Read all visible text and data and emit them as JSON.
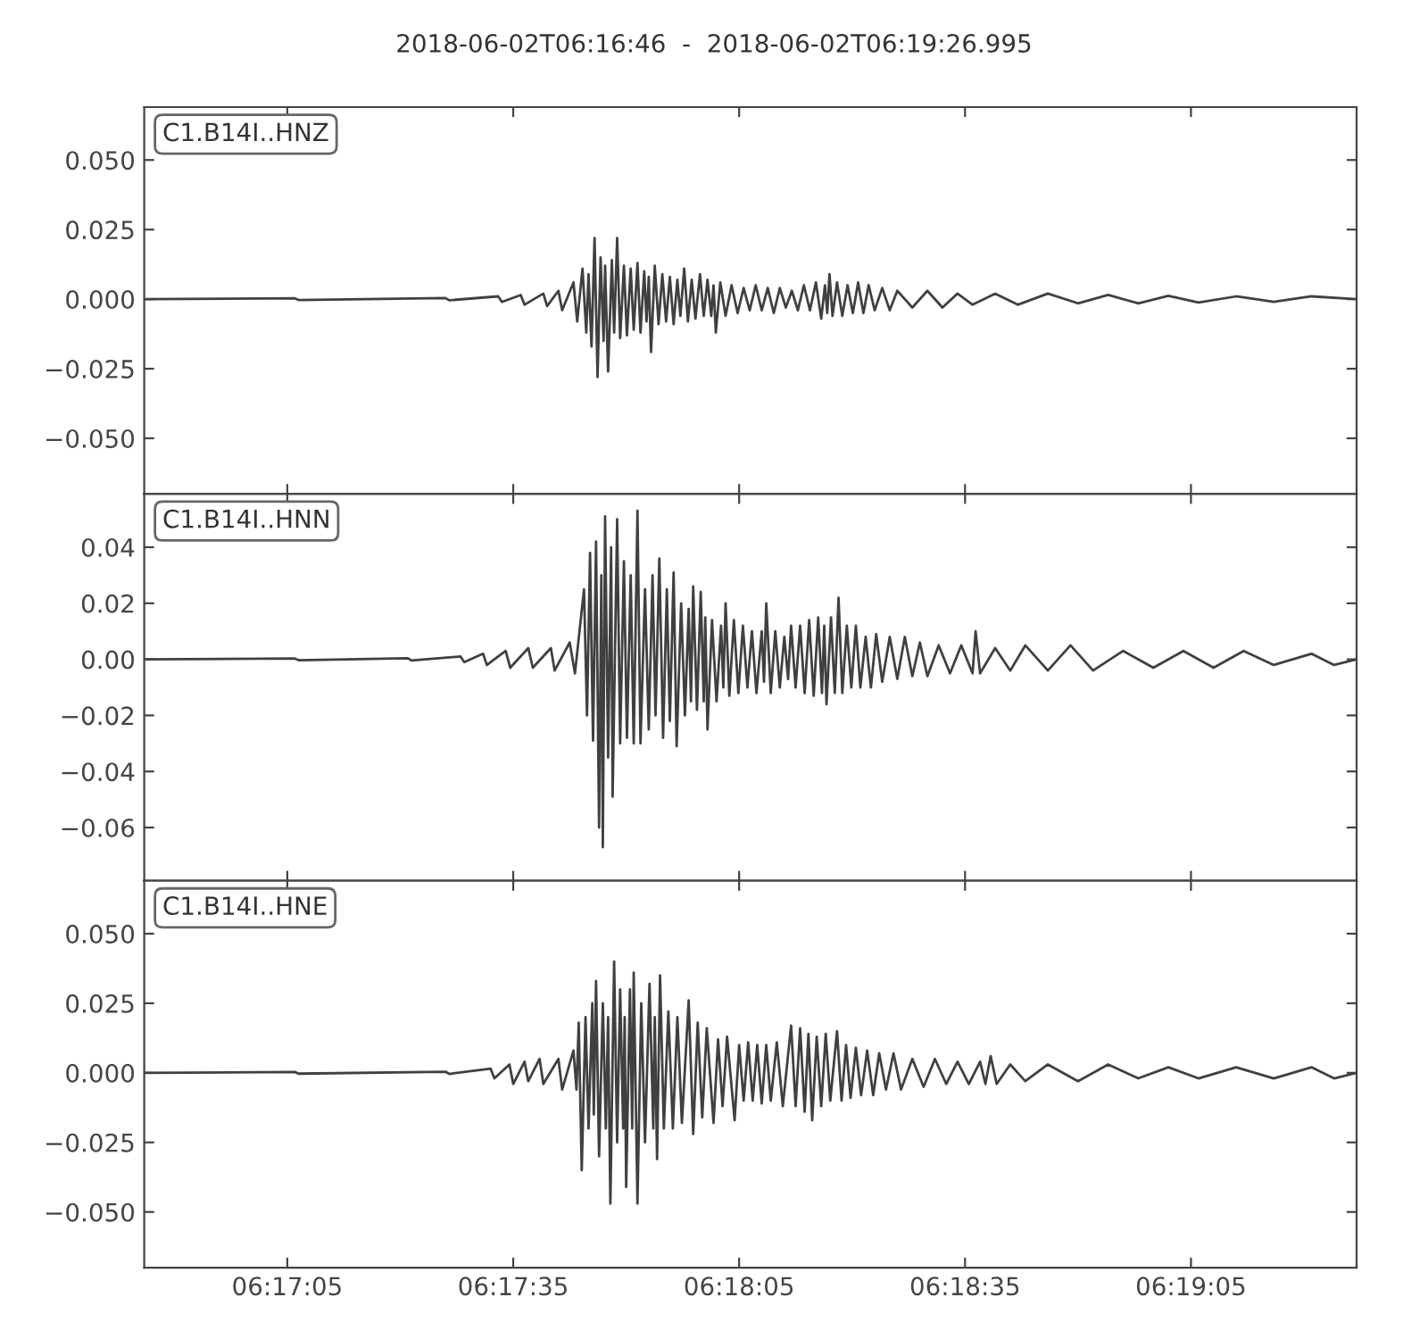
{
  "chart_data": [
    {
      "type": "line",
      "title": "2018-06-02T06:16:46  -  2018-06-02T06:19:26.995",
      "annotations": [
        "C1.B14I..HNZ"
      ],
      "tick_labels": "y",
      "color": "#404040",
      "xlim": [
        "2018-06-02T06:16:46",
        "2018-06-02T06:19:26.995"
      ],
      "xticks": [
        {
          "value": "2018-06-02T06:17:05",
          "label": null
        },
        {
          "value": "2018-06-02T06:17:35",
          "label": null
        },
        {
          "value": "2018-06-02T06:18:05",
          "label": null
        },
        {
          "value": "2018-06-02T06:18:35",
          "label": null
        },
        {
          "value": "2018-06-02T06:19:05",
          "label": null
        }
      ],
      "ylim": [
        -0.07,
        0.069
      ],
      "yticks": [
        {
          "value": -0.05,
          "label": "−0.050"
        },
        {
          "value": -0.025,
          "label": "−0.025"
        },
        {
          "value": 0,
          "label": "0.000"
        },
        {
          "value": 0.025,
          "label": "0.025"
        },
        {
          "value": 0.05,
          "label": "0.050"
        }
      ],
      "x": [
        "2018-06-02T06:16:46",
        "2018-06-02T06:17:06",
        "2018-06-02T06:17:06.5",
        "2018-06-02T06:17:26",
        "2018-06-02T06:17:26.5",
        "2018-06-02T06:17:33",
        "2018-06-02T06:17:33.5",
        "2018-06-02T06:17:36",
        "2018-06-02T06:17:36.5",
        "2018-06-02T06:17:39",
        "2018-06-02T06:17:39.5",
        "2018-06-02T06:17:41",
        "2018-06-02T06:17:41.5",
        "2018-06-02T06:17:43",
        "2018-06-02T06:17:43.5",
        "2018-06-02T06:17:44.2",
        "2018-06-02T06:17:44.7",
        "2018-06-02T06:17:45",
        "2018-06-02T06:17:45.4",
        "2018-06-02T06:17:45.8",
        "2018-06-02T06:17:46.2",
        "2018-06-02T06:17:46.6",
        "2018-06-02T06:17:47",
        "2018-06-02T06:17:47.2",
        "2018-06-02T06:17:47.6",
        "2018-06-02T06:17:48.1",
        "2018-06-02T06:17:48.4",
        "2018-06-02T06:17:48.8",
        "2018-06-02T06:17:49.2",
        "2018-06-02T06:17:49.7",
        "2018-06-02T06:17:50.1",
        "2018-06-02T06:17:50.6",
        "2018-06-02T06:17:51",
        "2018-06-02T06:17:51.5",
        "2018-06-02T06:17:51.9",
        "2018-06-02T06:17:52.4",
        "2018-06-02T06:17:52.7",
        "2018-06-02T06:17:53",
        "2018-06-02T06:17:53.3",
        "2018-06-02T06:17:53.8",
        "2018-06-02T06:17:54.3",
        "2018-06-02T06:17:54.8",
        "2018-06-02T06:17:55.3",
        "2018-06-02T06:17:55.8",
        "2018-06-02T06:17:56.3",
        "2018-06-02T06:17:56.8",
        "2018-06-02T06:17:57.2",
        "2018-06-02T06:17:57.7",
        "2018-06-02T06:17:58.2",
        "2018-06-02T06:17:58.7",
        "2018-06-02T06:17:59.2",
        "2018-06-02T06:17:59.8",
        "2018-06-02T06:18:00.3",
        "2018-06-02T06:18:00.8",
        "2018-06-02T06:18:01.3",
        "2018-06-02T06:18:01.6",
        "2018-06-02T06:18:01.9",
        "2018-06-02T06:18:02.5",
        "2018-06-02T06:18:03.2",
        "2018-06-02T06:18:04",
        "2018-06-02T06:18:04.8",
        "2018-06-02T06:18:05.6",
        "2018-06-02T06:18:06.4",
        "2018-06-02T06:18:07.2",
        "2018-06-02T06:18:08",
        "2018-06-02T06:18:08.8",
        "2018-06-02T06:18:09.6",
        "2018-06-02T06:18:10.4",
        "2018-06-02T06:18:11.2",
        "2018-06-02T06:18:12",
        "2018-06-02T06:18:12.8",
        "2018-06-02T06:18:13.6",
        "2018-06-02T06:18:14.4",
        "2018-06-02T06:18:15.2",
        "2018-06-02T06:18:15.9",
        "2018-06-02T06:18:16.4",
        "2018-06-02T06:18:16.7",
        "2018-06-02T06:18:17",
        "2018-06-02T06:18:17.4",
        "2018-06-02T06:18:18",
        "2018-06-02T06:18:18.7",
        "2018-06-02T06:18:19.4",
        "2018-06-02T06:18:20.1",
        "2018-06-02T06:18:20.8",
        "2018-06-02T06:18:21.5",
        "2018-06-02T06:18:22.2",
        "2018-06-02T06:18:23",
        "2018-06-02T06:18:24",
        "2018-06-02T06:18:25",
        "2018-06-02T06:18:26",
        "2018-06-02T06:18:28",
        "2018-06-02T06:18:30",
        "2018-06-02T06:18:32",
        "2018-06-02T06:18:34",
        "2018-06-02T06:18:36",
        "2018-06-02T06:18:39",
        "2018-06-02T06:18:42",
        "2018-06-02T06:18:46",
        "2018-06-02T06:18:50",
        "2018-06-02T06:18:54",
        "2018-06-02T06:18:58",
        "2018-06-02T06:19:02",
        "2018-06-02T06:19:06",
        "2018-06-02T06:19:11",
        "2018-06-02T06:19:16",
        "2018-06-02T06:19:21",
        "2018-06-02T06:19:26.995"
      ],
      "values": [
        0,
        0.0003,
        -0.0003,
        0.0004,
        -0.0004,
        0.001,
        -0.001,
        0.0015,
        -0.002,
        0.002,
        -0.0025,
        0.003,
        -0.004,
        0.006,
        -0.008,
        0.011,
        -0.012,
        0.009,
        -0.017,
        0.022,
        -0.028,
        0.015,
        -0.015,
        0.012,
        -0.026,
        0.014,
        -0.012,
        0.022,
        -0.014,
        0.012,
        -0.013,
        0.011,
        -0.011,
        0.013,
        -0.012,
        0.01,
        -0.008,
        0.008,
        -0.019,
        0.012,
        -0.009,
        0.009,
        -0.008,
        0.008,
        -0.009,
        0.007,
        -0.006,
        0.011,
        -0.008,
        0.007,
        -0.007,
        0.009,
        -0.006,
        0.007,
        -0.006,
        0.005,
        -0.012,
        0.006,
        -0.006,
        0.005,
        -0.005,
        0.004,
        -0.004,
        0.005,
        -0.004,
        0.004,
        -0.005,
        0.004,
        -0.003,
        0.003,
        -0.004,
        0.005,
        -0.004,
        0.006,
        -0.007,
        0.005,
        -0.005,
        0.009,
        -0.006,
        0.006,
        -0.006,
        0.005,
        -0.005,
        0.006,
        -0.005,
        0.005,
        -0.004,
        0.004,
        -0.004,
        0.003,
        -0.003,
        0.003,
        -0.003,
        0.002,
        -0.002,
        0.002,
        -0.002,
        0.002,
        -0.0015,
        0.0015,
        -0.0015,
        0.0012,
        -0.0012,
        0.001,
        -0.001,
        0.001,
        0
      ]
    },
    {
      "type": "line",
      "annotations": [
        "C1.B14I..HNN"
      ],
      "tick_labels": "y",
      "color": "#404040",
      "xlim": [
        "2018-06-02T06:16:46",
        "2018-06-02T06:19:26.995"
      ],
      "xticks": [
        {
          "value": "2018-06-02T06:17:05",
          "label": null
        },
        {
          "value": "2018-06-02T06:17:35",
          "label": null
        },
        {
          "value": "2018-06-02T06:18:05",
          "label": null
        },
        {
          "value": "2018-06-02T06:18:35",
          "label": null
        },
        {
          "value": "2018-06-02T06:19:05",
          "label": null
        }
      ],
      "ylim": [
        -0.079,
        0.059
      ],
      "yticks": [
        {
          "value": -0.06,
          "label": "−0.06"
        },
        {
          "value": -0.04,
          "label": "−0.04"
        },
        {
          "value": -0.02,
          "label": "−0.02"
        },
        {
          "value": 0,
          "label": "0.00"
        },
        {
          "value": 0.02,
          "label": "0.02"
        },
        {
          "value": 0.04,
          "label": "0.04"
        }
      ],
      "x": [
        "2018-06-02T06:16:46",
        "2018-06-02T06:17:06",
        "2018-06-02T06:17:06.5",
        "2018-06-02T06:17:21",
        "2018-06-02T06:17:21.5",
        "2018-06-02T06:17:28",
        "2018-06-02T06:17:28.5",
        "2018-06-02T06:17:31",
        "2018-06-02T06:17:31.5",
        "2018-06-02T06:17:34",
        "2018-06-02T06:17:34.6",
        "2018-06-02T06:17:37",
        "2018-06-02T06:17:37.6",
        "2018-06-02T06:17:40",
        "2018-06-02T06:17:40.5",
        "2018-06-02T06:17:42.5",
        "2018-06-02T06:17:43.2",
        "2018-06-02T06:17:44.4",
        "2018-06-02T06:17:44.8",
        "2018-06-02T06:17:45.2",
        "2018-06-02T06:17:45.6",
        "2018-06-02T06:17:46",
        "2018-06-02T06:17:46.4",
        "2018-06-02T06:17:46.7",
        "2018-06-02T06:17:46.9",
        "2018-06-02T06:17:47.2",
        "2018-06-02T06:17:47.6",
        "2018-06-02T06:17:48",
        "2018-06-02T06:17:48.2",
        "2018-06-02T06:17:48.8",
        "2018-06-02T06:17:49.2",
        "2018-06-02T06:17:49.7",
        "2018-06-02T06:17:50.1",
        "2018-06-02T06:17:50.6",
        "2018-06-02T06:17:51",
        "2018-06-02T06:17:51.5",
        "2018-06-02T06:17:51.9",
        "2018-06-02T06:17:52.5",
        "2018-06-02T06:17:53",
        "2018-06-02T06:17:53.5",
        "2018-06-02T06:17:53.9",
        "2018-06-02T06:17:54.4",
        "2018-06-02T06:17:54.9",
        "2018-06-02T06:17:55.4",
        "2018-06-02T06:17:55.8",
        "2018-06-02T06:17:56.3",
        "2018-06-02T06:17:56.7",
        "2018-06-02T06:17:57.3",
        "2018-06-02T06:17:57.8",
        "2018-06-02T06:17:58.3",
        "2018-06-02T06:17:58.6",
        "2018-06-02T06:17:58.9",
        "2018-06-02T06:17:59.4",
        "2018-06-02T06:17:59.9",
        "2018-06-02T06:18:00.3",
        "2018-06-02T06:18:00.5",
        "2018-06-02T06:18:00.8",
        "2018-06-02T06:18:01.4",
        "2018-06-02T06:18:02",
        "2018-06-02T06:18:02.6",
        "2018-06-02T06:18:02.9",
        "2018-06-02T06:18:03.2",
        "2018-06-02T06:18:03.7",
        "2018-06-02T06:18:04.3",
        "2018-06-02T06:18:04.9",
        "2018-06-02T06:18:05.5",
        "2018-06-02T06:18:06.1",
        "2018-06-02T06:18:06.7",
        "2018-06-02T06:18:07.3",
        "2018-06-02T06:18:08",
        "2018-06-02T06:18:08.3",
        "2018-06-02T06:18:08.6",
        "2018-06-02T06:18:09.2",
        "2018-06-02T06:18:09.8",
        "2018-06-02T06:18:10.4",
        "2018-06-02T06:18:11",
        "2018-06-02T06:18:11.5",
        "2018-06-02T06:18:11.9",
        "2018-06-02T06:18:12.5",
        "2018-06-02T06:18:13.1",
        "2018-06-02T06:18:13.7",
        "2018-06-02T06:18:14.3",
        "2018-06-02T06:18:14.9",
        "2018-06-02T06:18:15.5",
        "2018-06-02T06:18:16",
        "2018-06-02T06:18:16.3",
        "2018-06-02T06:18:16.6",
        "2018-06-02T06:18:17.2",
        "2018-06-02T06:18:17.7",
        "2018-06-02T06:18:18.2",
        "2018-06-02T06:18:18.7",
        "2018-06-02T06:18:19.3",
        "2018-06-02T06:18:19.9",
        "2018-06-02T06:18:20.5",
        "2018-06-02T06:18:21.1",
        "2018-06-02T06:18:21.8",
        "2018-06-02T06:18:22.5",
        "2018-06-02T06:18:23.2",
        "2018-06-02T06:18:24",
        "2018-06-02T06:18:25",
        "2018-06-02T06:18:26",
        "2018-06-02T06:18:27",
        "2018-06-02T06:18:28",
        "2018-06-02T06:18:29",
        "2018-06-02T06:18:30",
        "2018-06-02T06:18:31.5",
        "2018-06-02T06:18:33",
        "2018-06-02T06:18:34.5",
        "2018-06-02T06:18:36",
        "2018-06-02T06:18:36.4",
        "2018-06-02T06:18:37",
        "2018-06-02T06:18:39",
        "2018-06-02T06:18:41",
        "2018-06-02T06:18:43",
        "2018-06-02T06:18:46",
        "2018-06-02T06:18:49",
        "2018-06-02T06:18:52",
        "2018-06-02T06:18:56",
        "2018-06-02T06:19:00",
        "2018-06-02T06:19:04",
        "2018-06-02T06:19:08",
        "2018-06-02T06:19:12",
        "2018-06-02T06:19:16",
        "2018-06-02T06:19:21",
        "2018-06-02T06:19:24",
        "2018-06-02T06:19:26.995"
      ],
      "values": [
        0,
        0.0003,
        -0.0003,
        0.0004,
        -0.0004,
        0.001,
        -0.001,
        0.002,
        -0.002,
        0.003,
        -0.003,
        0.004,
        -0.003,
        0.004,
        -0.004,
        0.006,
        -0.005,
        0.025,
        -0.02,
        0.038,
        -0.029,
        0.042,
        -0.06,
        0.03,
        -0.067,
        0.051,
        -0.035,
        0.04,
        -0.049,
        0.05,
        -0.03,
        0.035,
        -0.028,
        0.03,
        -0.03,
        0.053,
        -0.03,
        0.025,
        -0.025,
        0.03,
        -0.02,
        0.036,
        -0.028,
        0.025,
        -0.022,
        0.031,
        -0.031,
        0.02,
        -0.02,
        0.018,
        -0.015,
        0.026,
        -0.018,
        0.024,
        -0.015,
        0.015,
        -0.025,
        0.014,
        -0.015,
        0.012,
        -0.01,
        0.02,
        -0.013,
        0.014,
        -0.012,
        0.012,
        -0.01,
        0.01,
        -0.012,
        0.01,
        -0.008,
        0.02,
        -0.012,
        0.01,
        -0.01,
        0.008,
        -0.007,
        0.012,
        -0.01,
        0.012,
        -0.012,
        0.014,
        -0.013,
        0.015,
        -0.012,
        0.012,
        -0.016,
        0.015,
        -0.012,
        0.022,
        -0.012,
        0.012,
        -0.01,
        0.012,
        -0.01,
        0.008,
        -0.01,
        0.009,
        -0.008,
        0.008,
        -0.007,
        0.008,
        -0.006,
        0.006,
        -0.006,
        0.005,
        -0.005,
        0.005,
        -0.005,
        0.01,
        -0.005,
        0.004,
        -0.004,
        0.005,
        -0.004,
        0.005,
        -0.004,
        0.003,
        -0.003,
        0.003,
        -0.003,
        0.003,
        -0.002,
        0.002,
        -0.002,
        0
      ]
    },
    {
      "type": "line",
      "annotations": [
        "C1.B14I..HNE"
      ],
      "color": "#404040",
      "xlim": [
        "2018-06-02T06:16:46",
        "2018-06-02T06:19:26.995"
      ],
      "xticks": [
        {
          "value": "2018-06-02T06:17:05",
          "label": "06:17:05"
        },
        {
          "value": "2018-06-02T06:17:35",
          "label": "06:17:35"
        },
        {
          "value": "2018-06-02T06:18:05",
          "label": "06:18:05"
        },
        {
          "value": "2018-06-02T06:18:35",
          "label": "06:18:35"
        },
        {
          "value": "2018-06-02T06:19:05",
          "label": "06:19:05"
        }
      ],
      "ylim": [
        -0.07,
        0.069
      ],
      "yticks": [
        {
          "value": -0.05,
          "label": "−0.050"
        },
        {
          "value": -0.025,
          "label": "−0.025"
        },
        {
          "value": 0,
          "label": "0.000"
        },
        {
          "value": 0.025,
          "label": "0.025"
        },
        {
          "value": 0.05,
          "label": "0.050"
        }
      ],
      "x": [
        "2018-06-02T06:16:46",
        "2018-06-02T06:17:06",
        "2018-06-02T06:17:06.5",
        "2018-06-02T06:17:26",
        "2018-06-02T06:17:26.5",
        "2018-06-02T06:17:32",
        "2018-06-02T06:17:32.5",
        "2018-06-02T06:17:34.5",
        "2018-06-02T06:17:35",
        "2018-06-02T06:17:36.5",
        "2018-06-02T06:17:37",
        "2018-06-02T06:17:38.5",
        "2018-06-02T06:17:39",
        "2018-06-02T06:17:41",
        "2018-06-02T06:17:41.5",
        "2018-06-02T06:17:43",
        "2018-06-02T06:17:43.4",
        "2018-06-02T06:17:43.7",
        "2018-06-02T06:17:44.1",
        "2018-06-02T06:17:44.6",
        "2018-06-02T06:17:45",
        "2018-06-02T06:17:45.5",
        "2018-06-02T06:17:45.7",
        "2018-06-02T06:17:46",
        "2018-06-02T06:17:46.4",
        "2018-06-02T06:17:46.9",
        "2018-06-02T06:17:47.3",
        "2018-06-02T06:17:47.6",
        "2018-06-02T06:17:47.9",
        "2018-06-02T06:17:48.4",
        "2018-06-02T06:17:48.8",
        "2018-06-02T06:17:49.2",
        "2018-06-02T06:17:49.6",
        "2018-06-02T06:17:49.8",
        "2018-06-02T06:17:50",
        "2018-06-02T06:17:50.5",
        "2018-06-02T06:17:50.8",
        "2018-06-02T06:17:51",
        "2018-06-02T06:17:51.5",
        "2018-06-02T06:17:52",
        "2018-06-02T06:17:52.5",
        "2018-06-02T06:17:53.1",
        "2018-06-02T06:17:53.6",
        "2018-06-02T06:17:53.8",
        "2018-06-02T06:17:54.1",
        "2018-06-02T06:17:54.5",
        "2018-06-02T06:17:55",
        "2018-06-02T06:17:55.6",
        "2018-06-02T06:17:56.2",
        "2018-06-02T06:17:56.8",
        "2018-06-02T06:17:57.4",
        "2018-06-02T06:17:58.3",
        "2018-06-02T06:17:58.9",
        "2018-06-02T06:17:59.5",
        "2018-06-02T06:18:00.1",
        "2018-06-02T06:18:00.7",
        "2018-06-02T06:18:01.6",
        "2018-06-02T06:18:02.2",
        "2018-06-02T06:18:02.8",
        "2018-06-02T06:18:03.4",
        "2018-06-02T06:18:04.4",
        "2018-06-02T06:18:05",
        "2018-06-02T06:18:05.6",
        "2018-06-02T06:18:06.2",
        "2018-06-02T06:18:06.8",
        "2018-06-02T06:18:07.4",
        "2018-06-02T06:18:08",
        "2018-06-02T06:18:08.6",
        "2018-06-02T06:18:09.2",
        "2018-06-02T06:18:10",
        "2018-06-02T06:18:10.8",
        "2018-06-02T06:18:11.9",
        "2018-06-02T06:18:12.5",
        "2018-06-02T06:18:13.1",
        "2018-06-02T06:18:13.7",
        "2018-06-02T06:18:14.2",
        "2018-06-02T06:18:14.7",
        "2018-06-02T06:18:15.3",
        "2018-06-02T06:18:15.9",
        "2018-06-02T06:18:16.5",
        "2018-06-02T06:18:17.1",
        "2018-06-02T06:18:18",
        "2018-06-02T06:18:18.6",
        "2018-06-02T06:18:19.2",
        "2018-06-02T06:18:19.8",
        "2018-06-02T06:18:20.5",
        "2018-06-02T06:18:21.2",
        "2018-06-02T06:18:22",
        "2018-06-02T06:18:22.8",
        "2018-06-02T06:18:23.6",
        "2018-06-02T06:18:24.5",
        "2018-06-02T06:18:25.5",
        "2018-06-02T06:18:26.5",
        "2018-06-02T06:18:28",
        "2018-06-02T06:18:29.5",
        "2018-06-02T06:18:31",
        "2018-06-02T06:18:32.5",
        "2018-06-02T06:18:34",
        "2018-06-02T06:18:35.5",
        "2018-06-02T06:18:37",
        "2018-06-02T06:18:37.7",
        "2018-06-02T06:18:38.4",
        "2018-06-02T06:18:39.2",
        "2018-06-02T06:18:41",
        "2018-06-02T06:18:43",
        "2018-06-02T06:18:46",
        "2018-06-02T06:18:50",
        "2018-06-02T06:18:54",
        "2018-06-02T06:18:58",
        "2018-06-02T06:19:02",
        "2018-06-02T06:19:06",
        "2018-06-02T06:19:11",
        "2018-06-02T06:19:16",
        "2018-06-02T06:19:21",
        "2018-06-02T06:19:24",
        "2018-06-02T06:19:26.995"
      ],
      "values": [
        0,
        0.0003,
        -0.0003,
        0.0004,
        -0.0004,
        0.0015,
        -0.002,
        0.003,
        -0.004,
        0.004,
        -0.003,
        0.005,
        -0.004,
        0.005,
        -0.006,
        0.008,
        -0.006,
        0.018,
        -0.035,
        0.02,
        -0.02,
        0.025,
        -0.015,
        0.033,
        -0.03,
        0.025,
        -0.02,
        0.02,
        -0.047,
        0.04,
        -0.025,
        0.03,
        -0.02,
        0.02,
        -0.041,
        0.03,
        -0.02,
        0.036,
        -0.047,
        0.025,
        -0.025,
        0.032,
        -0.02,
        0.02,
        -0.031,
        0.035,
        -0.02,
        0.022,
        -0.02,
        0.02,
        -0.018,
        0.026,
        -0.022,
        0.018,
        -0.016,
        0.016,
        -0.018,
        0.012,
        -0.012,
        0.013,
        -0.017,
        0.01,
        -0.01,
        0.011,
        -0.01,
        0.01,
        -0.011,
        0.01,
        -0.01,
        0.011,
        -0.012,
        0.017,
        -0.012,
        0.016,
        -0.014,
        0.014,
        -0.017,
        0.013,
        -0.012,
        0.014,
        -0.01,
        0.015,
        -0.01,
        0.01,
        -0.009,
        0.009,
        -0.008,
        0.008,
        -0.008,
        0.007,
        -0.006,
        0.007,
        -0.006,
        0.005,
        -0.005,
        0.005,
        -0.004,
        0.004,
        -0.004,
        0.004,
        -0.004,
        0.006,
        -0.004,
        0.003,
        -0.003,
        0.003,
        -0.003,
        0.003,
        -0.002,
        0.002,
        -0.002,
        0.002,
        -0.002,
        0.002,
        -0.002,
        0
      ]
    }
  ]
}
